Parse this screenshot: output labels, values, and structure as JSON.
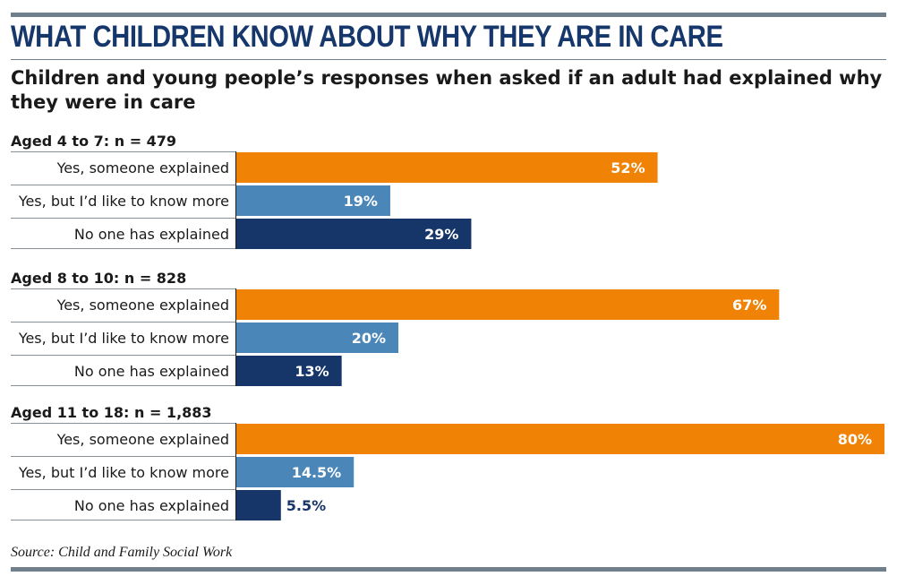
{
  "title": "WHAT CHILDREN KNOW ABOUT WHY THEY ARE IN CARE",
  "subtitle": "Children and young people’s responses when asked if an adult had explained why they were in care",
  "source": "Source: Child and Family Social Work",
  "colors": {
    "orange": "#f08306",
    "lightblue": "#4a86b8",
    "navy": "#16366a",
    "rule": "#6f7f8c"
  },
  "chart_data": {
    "type": "bar",
    "orientation": "horizontal",
    "categories": [
      "Yes, someone explained",
      "Yes, but I’d like to know more",
      "No one has explained"
    ],
    "groups": [
      {
        "label": "Aged 4 to 7: n = 479",
        "values": [
          52,
          19,
          29
        ],
        "value_labels": [
          "52%",
          "19%",
          "29%"
        ]
      },
      {
        "label": "Aged 8 to 10: n = 828",
        "values": [
          67,
          20,
          13
        ],
        "value_labels": [
          "67%",
          "20%",
          "13%"
        ]
      },
      {
        "label": "Aged 11 to 18: n = 1,883",
        "values": [
          80,
          14.5,
          5.5
        ],
        "value_labels": [
          "80%",
          "14.5%",
          "5.5%"
        ]
      }
    ],
    "unit": "%",
    "xlim": [
      0,
      80
    ],
    "legend": "none",
    "grid": false
  }
}
